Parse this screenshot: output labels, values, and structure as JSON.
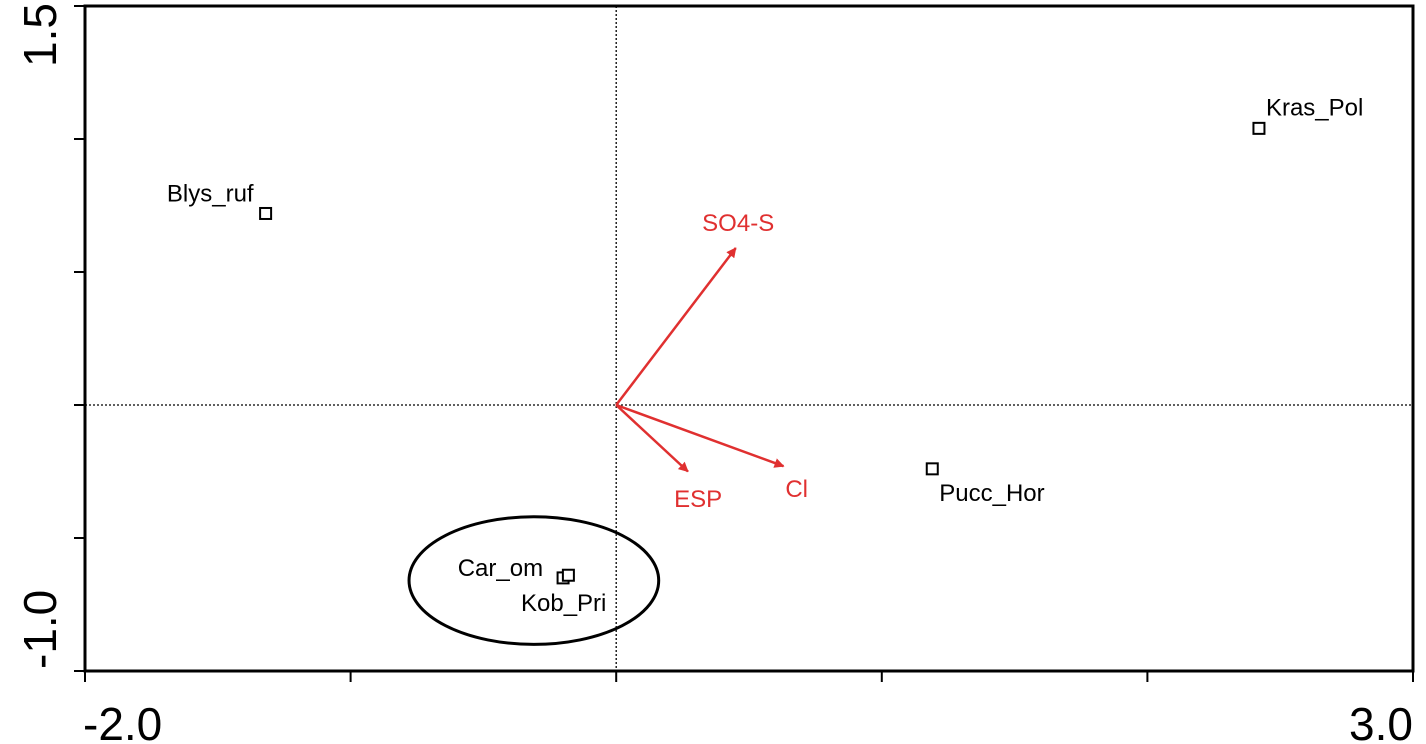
{
  "chart_data": {
    "type": "scatter",
    "title": "",
    "xlabel": "",
    "ylabel": "",
    "xlim": [
      -2.0,
      3.0
    ],
    "ylim": [
      -1.0,
      1.5
    ],
    "x_tick_labels": [
      "-2.0",
      "3.0"
    ],
    "y_tick_labels": [
      "1.5",
      "-1.0"
    ],
    "x_ticks": [
      -2.0,
      -1.0,
      0.0,
      1.0,
      2.0,
      3.0
    ],
    "y_ticks": [
      -1.0,
      -0.5,
      0.0,
      0.5,
      1.0,
      1.5
    ],
    "zero_lines": true,
    "grid": false,
    "points": [
      {
        "label": "Blys_ruf",
        "x": -1.32,
        "y": 0.72,
        "label_side": "left"
      },
      {
        "label": "Kras_Pol",
        "x": 2.42,
        "y": 1.04,
        "label_side": "right"
      },
      {
        "label": "Pucc_Hor",
        "x": 1.19,
        "y": -0.24,
        "label_side": "right"
      },
      {
        "label": "Car_om",
        "x": -0.2,
        "y": -0.65,
        "label_side": "left"
      },
      {
        "label": "Kob_Pri",
        "x": -0.18,
        "y": -0.64,
        "label_side": "left"
      }
    ],
    "vectors": [
      {
        "label": "SO4-S",
        "x": 0.45,
        "y": 0.59,
        "color": "#e03030"
      },
      {
        "label": "ESP",
        "x": 0.27,
        "y": -0.25,
        "color": "#e03030"
      },
      {
        "label": "Cl",
        "x": 0.63,
        "y": -0.23,
        "color": "#e03030"
      }
    ],
    "ellipse": {
      "cx": -0.31,
      "cy": -0.66,
      "rx": 0.47,
      "ry": 0.24
    }
  }
}
